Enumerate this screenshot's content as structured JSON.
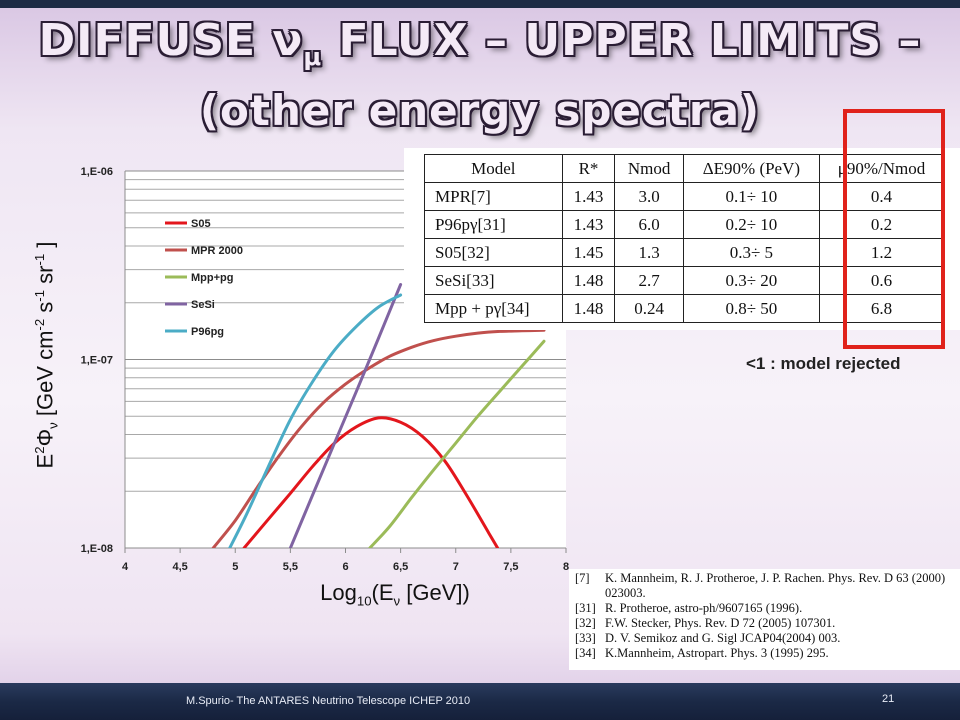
{
  "slide": {
    "title_parts": [
      "DIFFUSE ",
      "ν",
      "μ",
      " FLUX – UPPER LIMITS –"
    ],
    "title_line2": "(other energy spectra)",
    "note": "<1 : model rejected",
    "footer_text": "M.Spurio- The ANTARES Neutrino Telescope    ICHEP 2010",
    "slide_number": "21"
  },
  "chart_data": {
    "type": "line",
    "xlabel_parts": [
      "Log",
      "10",
      "(E",
      "ν",
      " [GeV])"
    ],
    "ylabel_parts": [
      "E",
      "2",
      "Φ",
      "ν",
      " [GeV cm",
      "-2",
      " s",
      "-1",
      " sr",
      "-1",
      " ]"
    ],
    "x_ticks": [
      4,
      4.5,
      5,
      5.5,
      6,
      6.5,
      7,
      7.5,
      8
    ],
    "x_tick_labels": [
      "4",
      "4,5",
      "5",
      "5,5",
      "6",
      "6,5",
      "7",
      "7,5",
      "8"
    ],
    "xlim": [
      4,
      8
    ],
    "y_scale": "log",
    "ylim": [
      1e-08,
      1e-06
    ],
    "y_ticks": [
      1e-08,
      1e-07,
      1e-06
    ],
    "y_tick_labels": [
      "1,E-08",
      "1,E-07",
      "1,E-06"
    ],
    "grid": "horizontal",
    "legend_position": "upper-left",
    "series": [
      {
        "name": "S05",
        "color": "#e3161c",
        "x": [
          5.08,
          5.3,
          5.5,
          5.7,
          5.9,
          6.1,
          6.3,
          6.5,
          6.7,
          6.9,
          7.1,
          7.3,
          7.38
        ],
        "y": [
          1e-08,
          1.42e-08,
          1.95e-08,
          2.7e-08,
          3.6e-08,
          4.4e-08,
          4.9e-08,
          4.65e-08,
          3.9e-08,
          2.9e-08,
          1.9e-08,
          1.2e-08,
          1e-08
        ]
      },
      {
        "name": "MPR 2000",
        "color": "#c0504d",
        "x": [
          4.8,
          5.0,
          5.2,
          5.4,
          5.6,
          5.8,
          6.0,
          6.2,
          6.4,
          6.6,
          6.8,
          7.0,
          7.2,
          7.4,
          7.6,
          7.8
        ],
        "y": [
          1e-08,
          1.4e-08,
          2.1e-08,
          3.1e-08,
          4.4e-08,
          5.9e-08,
          7.4e-08,
          8.9e-08,
          1.04e-07,
          1.16e-07,
          1.26e-07,
          1.33e-07,
          1.38e-07,
          1.41e-07,
          1.42e-07,
          1.43e-07
        ]
      },
      {
        "name": "Mpp+pg",
        "color": "#9bbb59",
        "x": [
          6.22,
          6.4,
          6.6,
          6.8,
          7.0,
          7.2,
          7.4,
          7.6,
          7.8
        ],
        "y": [
          1e-08,
          1.3e-08,
          1.85e-08,
          2.6e-08,
          3.6e-08,
          5e-08,
          6.8e-08,
          9.2e-08,
          1.25e-07
        ]
      },
      {
        "name": "SeSi",
        "color": "#8064a2",
        "x": [
          5.5,
          5.7,
          5.9,
          6.1,
          6.3,
          6.5
        ],
        "y": [
          1e-08,
          1.9e-08,
          3.6e-08,
          6.8e-08,
          1.3e-07,
          2.5e-07
        ]
      },
      {
        "name": "P96pg",
        "color": "#4bacc6",
        "x": [
          4.95,
          5.1,
          5.3,
          5.5,
          5.7,
          5.9,
          6.1,
          6.3,
          6.5
        ],
        "y": [
          1e-08,
          1.5e-08,
          2.7e-08,
          4.8e-08,
          7.6e-08,
          1.12e-07,
          1.5e-07,
          1.9e-07,
          2.2e-07
        ]
      }
    ]
  },
  "table": {
    "headers": [
      "Model",
      "R*",
      "Nmod",
      "ΔE90% (PeV)",
      "μ90%/Nmod"
    ],
    "rows": [
      [
        "MPR[7]",
        "1.43",
        "3.0",
        "0.1÷ 10",
        "0.4"
      ],
      [
        "P96pγ[31]",
        "1.43",
        "6.0",
        "0.2÷ 10",
        "0.2"
      ],
      [
        "S05[32]",
        "1.45",
        "1.3",
        "0.3÷  5",
        "1.2"
      ],
      [
        "SeSi[33]",
        "1.48",
        "2.7",
        "0.3÷ 20",
        "0.6"
      ],
      [
        "Mpp + pγ[34]",
        "1.48",
        "0.24",
        "0.8÷ 50",
        "6.8"
      ]
    ]
  },
  "references": [
    {
      "id": "[7]",
      "text": "K. Mannheim, R. J. Protheroe, J. P. Rachen. Phys. Rev. D 63 (2000) 023003."
    },
    {
      "id": "[31]",
      "text": "R. Protheroe, astro-ph/9607165 (1996)."
    },
    {
      "id": "[32]",
      "text": "F.W. Stecker, Phys. Rev. D 72 (2005) 107301."
    },
    {
      "id": "[33]",
      "text": "D. V. Semikoz and G. Sigl JCAP04(2004) 003."
    },
    {
      "id": "[34]",
      "text": "K.Mannheim, Astropart. Phys. 3 (1995) 295."
    }
  ],
  "colors": {
    "highlight_box": "#e0221b",
    "footer_bg": "#1b2946"
  }
}
